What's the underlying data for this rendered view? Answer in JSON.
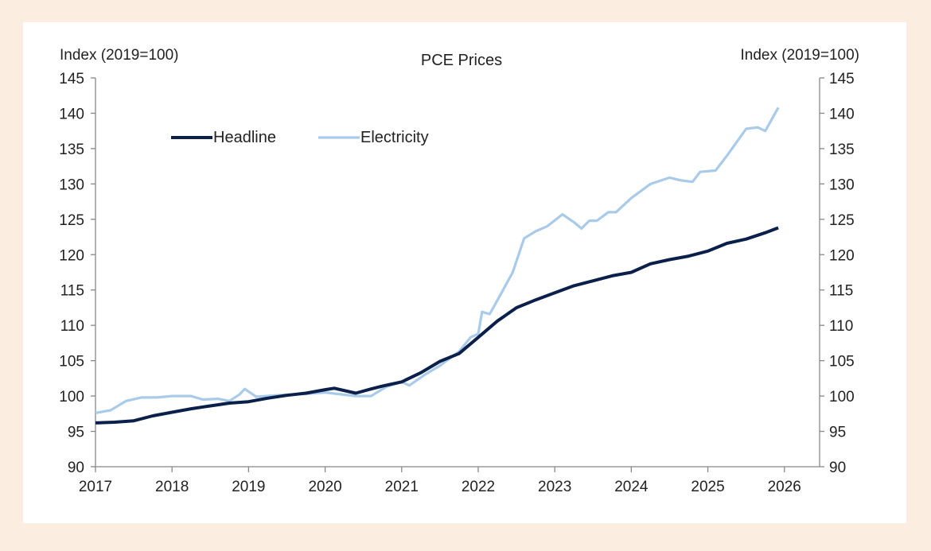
{
  "chart_data": {
    "type": "line",
    "title": "PCE Prices",
    "ylabel_left": "Index (2019=100)",
    "ylabel_right": "Index (2019=100)",
    "xlabel": "",
    "xlim": [
      2017,
      2026.46
    ],
    "ylim": [
      90,
      145
    ],
    "x_ticks": [
      "2017",
      "2018",
      "2019",
      "2020",
      "2021",
      "2022",
      "2023",
      "2024",
      "2025",
      "2026"
    ],
    "y_ticks": [
      "90",
      "95",
      "100",
      "105",
      "110",
      "115",
      "120",
      "125",
      "130",
      "135",
      "140",
      "145"
    ],
    "grid": false,
    "legend_placement": "top-left",
    "series": [
      {
        "name": "Headline",
        "color": "#0b1f4b",
        "points": [
          [
            2017.0,
            96.2
          ],
          [
            2017.25,
            96.3
          ],
          [
            2017.5,
            96.5
          ],
          [
            2017.75,
            97.2
          ],
          [
            2018.0,
            97.7
          ],
          [
            2018.25,
            98.2
          ],
          [
            2018.5,
            98.6
          ],
          [
            2018.75,
            99.0
          ],
          [
            2019.0,
            99.2
          ],
          [
            2019.25,
            99.7
          ],
          [
            2019.5,
            100.1
          ],
          [
            2019.75,
            100.4
          ],
          [
            2020.0,
            100.9
          ],
          [
            2020.12,
            101.1
          ],
          [
            2020.4,
            100.4
          ],
          [
            2020.6,
            101.0
          ],
          [
            2020.75,
            101.4
          ],
          [
            2021.0,
            102.0
          ],
          [
            2021.25,
            103.3
          ],
          [
            2021.5,
            104.9
          ],
          [
            2021.75,
            106.0
          ],
          [
            2022.0,
            108.3
          ],
          [
            2022.25,
            110.6
          ],
          [
            2022.5,
            112.5
          ],
          [
            2022.75,
            113.6
          ],
          [
            2023.0,
            114.6
          ],
          [
            2023.25,
            115.6
          ],
          [
            2023.5,
            116.3
          ],
          [
            2023.75,
            117.0
          ],
          [
            2024.0,
            117.5
          ],
          [
            2024.25,
            118.7
          ],
          [
            2024.5,
            119.3
          ],
          [
            2024.75,
            119.8
          ],
          [
            2025.0,
            120.5
          ],
          [
            2025.25,
            121.6
          ],
          [
            2025.5,
            122.2
          ],
          [
            2025.75,
            123.1
          ],
          [
            2025.92,
            123.8
          ]
        ]
      },
      {
        "name": "Electricity",
        "color": "#a9cbe9",
        "points": [
          [
            2017.0,
            97.6
          ],
          [
            2017.2,
            98.0
          ],
          [
            2017.4,
            99.3
          ],
          [
            2017.6,
            99.8
          ],
          [
            2017.8,
            99.8
          ],
          [
            2018.0,
            100.0
          ],
          [
            2018.25,
            100.0
          ],
          [
            2018.4,
            99.5
          ],
          [
            2018.6,
            99.6
          ],
          [
            2018.75,
            99.3
          ],
          [
            2018.88,
            100.2
          ],
          [
            2018.95,
            101.0
          ],
          [
            2019.1,
            99.9
          ],
          [
            2019.5,
            100.2
          ],
          [
            2019.75,
            100.3
          ],
          [
            2020.0,
            100.5
          ],
          [
            2020.4,
            100.0
          ],
          [
            2020.6,
            100.0
          ],
          [
            2020.8,
            101.3
          ],
          [
            2021.0,
            102.0
          ],
          [
            2021.1,
            101.5
          ],
          [
            2021.3,
            103.0
          ],
          [
            2021.5,
            104.3
          ],
          [
            2021.75,
            106.3
          ],
          [
            2021.9,
            108.3
          ],
          [
            2022.0,
            108.8
          ],
          [
            2022.05,
            111.9
          ],
          [
            2022.15,
            111.6
          ],
          [
            2022.3,
            114.5
          ],
          [
            2022.45,
            117.5
          ],
          [
            2022.6,
            122.3
          ],
          [
            2022.75,
            123.3
          ],
          [
            2022.9,
            124.0
          ],
          [
            2023.1,
            125.7
          ],
          [
            2023.25,
            124.6
          ],
          [
            2023.35,
            123.7
          ],
          [
            2023.45,
            124.8
          ],
          [
            2023.55,
            124.8
          ],
          [
            2023.7,
            126.0
          ],
          [
            2023.8,
            126.0
          ],
          [
            2024.0,
            128.0
          ],
          [
            2024.25,
            130.0
          ],
          [
            2024.5,
            130.9
          ],
          [
            2024.65,
            130.5
          ],
          [
            2024.8,
            130.3
          ],
          [
            2024.9,
            131.7
          ],
          [
            2025.1,
            131.9
          ],
          [
            2025.25,
            134.0
          ],
          [
            2025.5,
            137.8
          ],
          [
            2025.65,
            138.0
          ],
          [
            2025.75,
            137.5
          ],
          [
            2025.92,
            140.8
          ]
        ]
      }
    ]
  }
}
